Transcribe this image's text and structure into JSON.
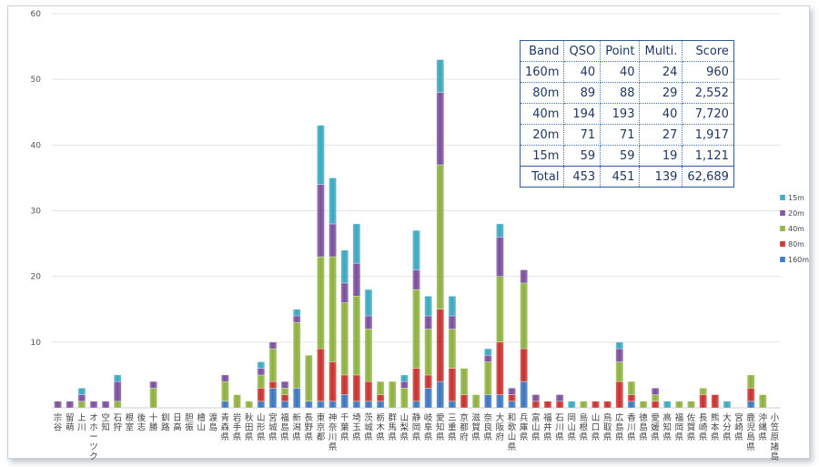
{
  "chart_data": {
    "type": "bar",
    "stacked": true,
    "ylim": [
      0,
      60
    ],
    "yticks": [
      10,
      20,
      30,
      40,
      50,
      60
    ],
    "grid": true,
    "legend_position": "right",
    "categories": [
      "宗谷",
      "留萌",
      "上川",
      "オホーツク",
      "空知",
      "石狩",
      "根室",
      "後志",
      "十勝",
      "釧路",
      "日高",
      "胆振",
      "檜山",
      "渡島",
      "青森県",
      "岩手県",
      "秋田県",
      "山形県",
      "宮城県",
      "福島県",
      "新潟県",
      "長野県",
      "東京都",
      "神奈川県",
      "千葉県",
      "埼玉県",
      "茨城県",
      "栃木県",
      "群馬県",
      "山梨県",
      "静岡県",
      "岐阜県",
      "愛知県",
      "三重県",
      "京都府",
      "滋賀県",
      "奈良県",
      "大阪府",
      "和歌山県",
      "兵庫県",
      "富山県",
      "福井県",
      "石川県",
      "岡山県",
      "島根県",
      "山口県",
      "鳥取県",
      "広島県",
      "香川県",
      "徳島県",
      "愛媛県",
      "高知県",
      "福岡県",
      "佐賀県",
      "長崎県",
      "熊本県",
      "大分県",
      "宮崎県",
      "鹿児島県",
      "沖縄県",
      "小笠原諸島"
    ],
    "series": [
      {
        "name": "160m",
        "color": "#3a75bd",
        "values": [
          0,
          0,
          0,
          0,
          0,
          0,
          0,
          0,
          0,
          0,
          0,
          0,
          0,
          0,
          1,
          0,
          0,
          1,
          3,
          1,
          3,
          1,
          1,
          1,
          2,
          1,
          1,
          1,
          0,
          0,
          1,
          3,
          4,
          1,
          0,
          0,
          2,
          2,
          1,
          4,
          0,
          0,
          0,
          0,
          0,
          0,
          0,
          0,
          1,
          0,
          0,
          0,
          0,
          0,
          0,
          0,
          0,
          0,
          1,
          0,
          0
        ]
      },
      {
        "name": "80m",
        "color": "#c8302c",
        "values": [
          0,
          0,
          0,
          0,
          0,
          0,
          0,
          0,
          0,
          0,
          0,
          0,
          0,
          0,
          0,
          0,
          0,
          2,
          1,
          1,
          0,
          0,
          8,
          6,
          3,
          4,
          3,
          1,
          0,
          0,
          5,
          2,
          11,
          5,
          2,
          0,
          0,
          8,
          1,
          5,
          1,
          1,
          1,
          0,
          0,
          1,
          1,
          4,
          1,
          0,
          1,
          0,
          0,
          0,
          2,
          2,
          0,
          0,
          2,
          0,
          0
        ]
      },
      {
        "name": "40m",
        "color": "#8db03d",
        "values": [
          0,
          0,
          1,
          0,
          0,
          1,
          0,
          0,
          3,
          0,
          0,
          0,
          0,
          0,
          3,
          2,
          1,
          2,
          5,
          1,
          10,
          7,
          14,
          16,
          11,
          12,
          8,
          2,
          4,
          3,
          12,
          7,
          22,
          6,
          4,
          2,
          5,
          10,
          0,
          10,
          0,
          0,
          0,
          0,
          1,
          0,
          0,
          3,
          2,
          1,
          1,
          0,
          1,
          1,
          1,
          0,
          0,
          0,
          2,
          2,
          0
        ]
      },
      {
        "name": "20m",
        "color": "#7a4d9c",
        "values": [
          1,
          1,
          1,
          1,
          1,
          3,
          0,
          0,
          1,
          0,
          0,
          0,
          0,
          0,
          1,
          0,
          0,
          1,
          1,
          1,
          1,
          0,
          11,
          5,
          3,
          5,
          2,
          0,
          0,
          1,
          3,
          2,
          11,
          2,
          0,
          0,
          1,
          6,
          1,
          2,
          1,
          0,
          1,
          0,
          0,
          0,
          0,
          2,
          0,
          0,
          1,
          0,
          0,
          0,
          0,
          0,
          0,
          0,
          0,
          0,
          0
        ]
      },
      {
        "name": "15m",
        "color": "#3aa6bf",
        "values": [
          0,
          0,
          1,
          0,
          0,
          1,
          0,
          0,
          0,
          0,
          0,
          0,
          0,
          0,
          0,
          0,
          0,
          1,
          0,
          0,
          1,
          0,
          9,
          7,
          5,
          6,
          4,
          0,
          0,
          1,
          6,
          3,
          5,
          3,
          0,
          0,
          1,
          2,
          0,
          0,
          0,
          0,
          0,
          1,
          0,
          0,
          0,
          1,
          0,
          0,
          0,
          1,
          0,
          0,
          0,
          0,
          1,
          0,
          0,
          0,
          0
        ]
      }
    ]
  },
  "score_table": {
    "headers": [
      "Band",
      "QSO",
      "Point",
      "Multi.",
      "Score"
    ],
    "rows": [
      [
        "160m",
        "40",
        "40",
        "24",
        "960"
      ],
      [
        "80m",
        "89",
        "88",
        "29",
        "2,552"
      ],
      [
        "40m",
        "194",
        "193",
        "40",
        "7,720"
      ],
      [
        "20m",
        "71",
        "71",
        "27",
        "1,917"
      ],
      [
        "15m",
        "59",
        "59",
        "19",
        "1,121"
      ],
      [
        "Total",
        "453",
        "451",
        "139",
        "62,689"
      ]
    ]
  }
}
